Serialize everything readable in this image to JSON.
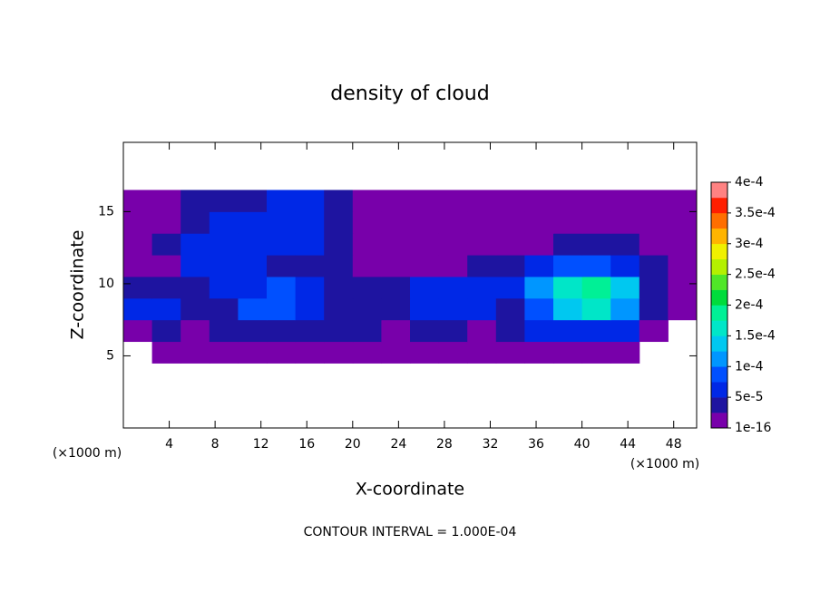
{
  "chart_data": {
    "type": "contour",
    "title": "density of cloud",
    "x_label": "X-coordinate",
    "y_label": "Z-coordinate",
    "x_unit": "(×1000 m)",
    "y_unit": "(×1000 m)",
    "footer": "CONTOUR INTERVAL = 1.000E-04",
    "xlim": [
      0,
      50
    ],
    "ylim": [
      0,
      19.8
    ],
    "xticks": [
      4,
      8,
      12,
      16,
      20,
      24,
      28,
      32,
      36,
      40,
      44,
      48
    ],
    "yticks": [
      5,
      10,
      15
    ],
    "x": [
      1.25,
      3.75,
      6.25,
      8.75,
      11.25,
      13.75,
      16.25,
      18.75,
      21.25,
      23.75,
      26.25,
      28.75,
      31.25,
      33.75,
      36.25,
      38.75,
      41.25,
      43.75,
      46.25,
      48.75
    ],
    "y": [
      5.25,
      6.75,
      8.25,
      9.75,
      11.25,
      12.75,
      14.25,
      15.75
    ],
    "z": [
      [
        null,
        1e-05,
        5e-06,
        1e-05,
        1e-05,
        1e-05,
        1e-05,
        1e-05,
        1e-05,
        1e-05,
        1e-05,
        1e-05,
        1e-05,
        1e-05,
        1e-05,
        1e-05,
        1e-05,
        5e-06,
        null,
        null
      ],
      [
        2e-05,
        3e-05,
        1e-05,
        3e-05,
        3e-05,
        3e-05,
        3e-05,
        3e-05,
        3e-05,
        2e-05,
        3e-05,
        3e-05,
        2e-05,
        3e-05,
        5e-05,
        7e-05,
        7e-05,
        5e-05,
        2e-05,
        null
      ],
      [
        5e-05,
        7e-05,
        3e-05,
        4e-05,
        8e-05,
        9e-05,
        6e-05,
        4e-05,
        3e-05,
        3e-05,
        6e-05,
        6e-05,
        5e-05,
        3e-05,
        8e-05,
        0.00014,
        0.00015,
        0.00012,
        3e-05,
        2e-05
      ],
      [
        4e-05,
        4e-05,
        3e-05,
        5e-05,
        7e-05,
        8e-05,
        6e-05,
        4e-05,
        3e-05,
        3e-05,
        5e-05,
        6e-05,
        6e-05,
        7e-05,
        0.0001,
        0.00017,
        0.00019,
        0.00014,
        4e-05,
        1e-05
      ],
      [
        5e-06,
        2e-05,
        5e-05,
        6e-05,
        5e-05,
        4e-05,
        4e-05,
        3e-05,
        2e-05,
        2e-05,
        2e-05,
        2e-05,
        3e-05,
        3e-05,
        5e-05,
        9e-05,
        9e-05,
        6e-05,
        3e-05,
        1e-05
      ],
      [
        1e-05,
        3e-05,
        5e-05,
        6e-05,
        6e-05,
        6e-05,
        5e-05,
        3e-05,
        2e-05,
        2e-05,
        1e-05,
        1e-05,
        1e-05,
        1e-05,
        1e-05,
        3e-05,
        4e-05,
        3e-05,
        2e-05,
        1e-05
      ],
      [
        1e-05,
        2e-05,
        4e-05,
        5e-05,
        6e-05,
        6e-05,
        5e-05,
        4e-05,
        2e-05,
        2e-05,
        1e-05,
        5e-06,
        1e-05,
        1e-05,
        1e-05,
        1e-05,
        2e-05,
        2e-05,
        1e-05,
        5e-06
      ],
      [
        5e-06,
        2e-05,
        3e-05,
        4e-05,
        4e-05,
        5e-05,
        5e-05,
        4e-05,
        2e-05,
        1e-05,
        5e-06,
        5e-06,
        5e-06,
        5e-06,
        5e-06,
        5e-06,
        5e-06,
        5e-06,
        5e-06,
        5e-06
      ]
    ],
    "levels": [
      1e-16,
      2.5e-05,
      5e-05,
      7.5e-05,
      0.0001,
      0.000125,
      0.00015,
      0.000175,
      0.0002,
      0.000225,
      0.00025,
      0.000275,
      0.0003,
      0.000325,
      0.00035,
      0.000375,
      0.0004
    ],
    "colors": [
      "#7800aa",
      "#1e14a0",
      "#0028e6",
      "#0050ff",
      "#0096ff",
      "#00c8f0",
      "#00e6c8",
      "#00f096",
      "#00dc3c",
      "#50e628",
      "#b4f000",
      "#f0f000",
      "#ffb400",
      "#ff6e00",
      "#ff1e00",
      "#ff8282"
    ],
    "colorbar_ticks": [
      {
        "value": 1e-16,
        "label": "1e-16"
      },
      {
        "value": 5e-05,
        "label": "5e-5"
      },
      {
        "value": 0.0001,
        "label": "1e-4"
      },
      {
        "value": 0.00015,
        "label": "1.5e-4"
      },
      {
        "value": 0.0002,
        "label": "2e-4"
      },
      {
        "value": 0.00025,
        "label": "2.5e-4"
      },
      {
        "value": 0.0003,
        "label": "3e-4"
      },
      {
        "value": 0.00035,
        "label": "3.5e-4"
      },
      {
        "value": 0.0004,
        "label": "4e-4"
      }
    ]
  }
}
